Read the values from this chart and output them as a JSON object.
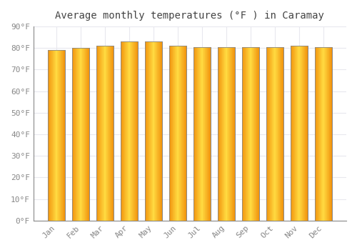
{
  "title": "Average monthly temperatures (°F ) in Caramay",
  "months": [
    "Jan",
    "Feb",
    "Mar",
    "Apr",
    "May",
    "Jun",
    "Jul",
    "Aug",
    "Sep",
    "Oct",
    "Nov",
    "Dec"
  ],
  "values": [
    79.0,
    80.0,
    81.0,
    83.0,
    83.0,
    81.0,
    80.5,
    80.5,
    80.5,
    80.5,
    81.0,
    80.5
  ],
  "bar_color_center": "#FFCC44",
  "bar_color_edge": "#F0900A",
  "bar_outline_color": "#888888",
  "background_color": "#ffffff",
  "plot_bg_color": "#ffffff",
  "ylim": [
    0,
    90
  ],
  "yticks": [
    0,
    10,
    20,
    30,
    40,
    50,
    60,
    70,
    80,
    90
  ],
  "ytick_labels": [
    "0°F",
    "10°F",
    "20°F",
    "30°F",
    "40°F",
    "50°F",
    "60°F",
    "70°F",
    "80°F",
    "90°F"
  ],
  "grid_color": "#e8e8ee",
  "title_fontsize": 10,
  "tick_fontsize": 8
}
